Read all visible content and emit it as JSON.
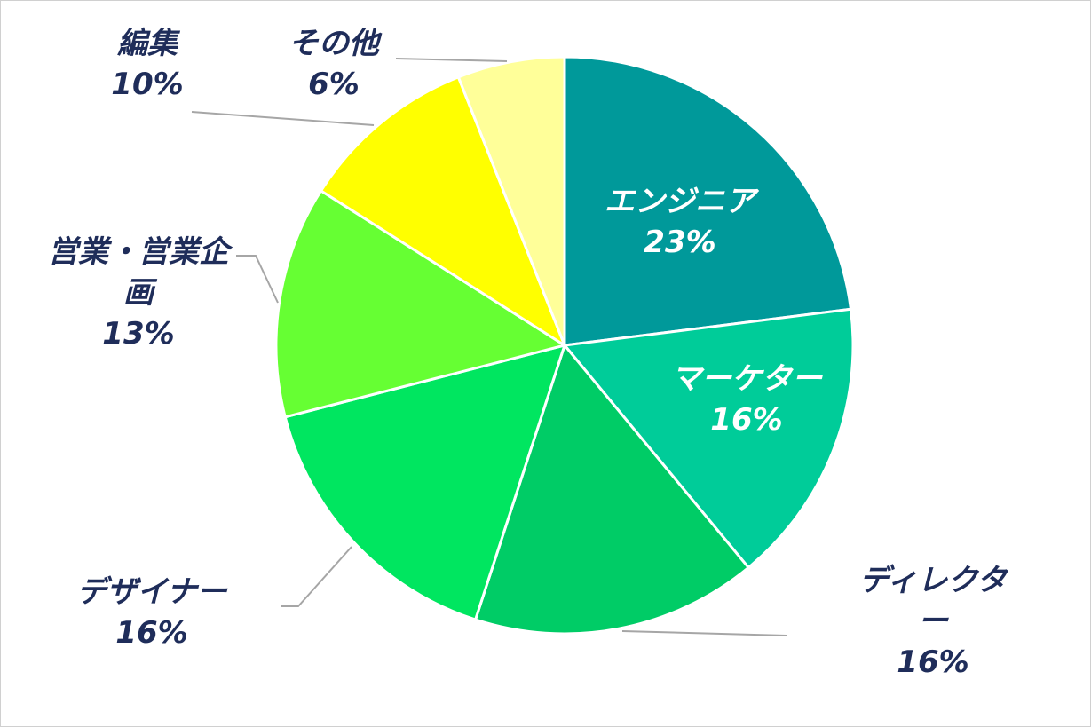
{
  "chart_data": {
    "type": "pie",
    "categories": [
      "エンジニア",
      "マーケター",
      "ディレクター",
      "デザイナー",
      "営業・営業企画",
      "編集",
      "その他"
    ],
    "values": [
      23,
      16,
      16,
      16,
      13,
      10,
      6
    ],
    "value_labels": [
      "23%",
      "16%",
      "16%",
      "16%",
      "13%",
      "10%",
      "6%"
    ],
    "colors": [
      "#00999a",
      "#00cc99",
      "#00cc66",
      "#00e660",
      "#66ff33",
      "#ffff00",
      "#ffff99"
    ]
  }
}
